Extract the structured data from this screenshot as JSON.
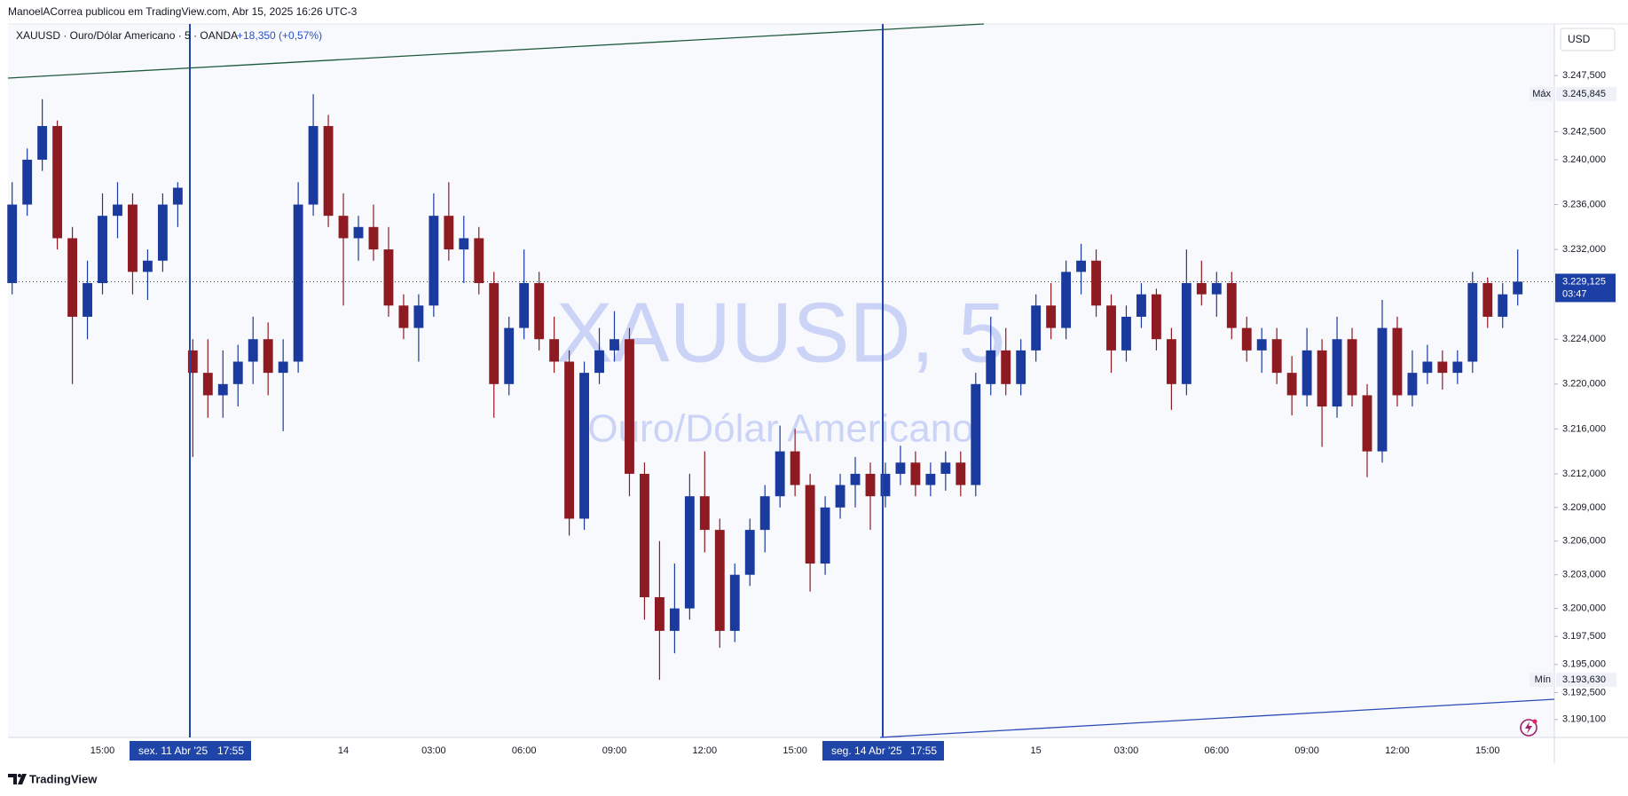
{
  "chart_data": {
    "type": "candlestick",
    "publisher": "ManoelACorrea publicou em TradingView.com, Abr 15, 2025 16:26 UTC-3",
    "symbol": "XAUUSD · Ouro/Dólar Americano · 5 · OANDA",
    "change": "+18,350 (+0,57%)",
    "currency": "USD",
    "watermark": "XAUUSD, 5",
    "watermark_subtitle": "Ouro/Dólar Americano",
    "brand": "TradingView",
    "up_color": "#1a3a9e",
    "down_color": "#8e1a22",
    "grid": false,
    "categories": [
      null,
      null,
      null,
      null,
      null,
      null,
      "15:00",
      null,
      null,
      null,
      null,
      null,
      null,
      null,
      null,
      null,
      null,
      null,
      null,
      null,
      null,
      null,
      "14",
      null,
      null,
      null,
      null,
      null,
      "03:00",
      null,
      null,
      null,
      null,
      null,
      "06:00",
      null,
      null,
      null,
      null,
      null,
      "09:00",
      null,
      null,
      null,
      null,
      null,
      "12:00",
      null,
      null,
      null,
      null,
      null,
      "15:00",
      null,
      null,
      null,
      null,
      null,
      null,
      null,
      null,
      null,
      null,
      null,
      null,
      null,
      null,
      null,
      "15",
      null,
      null,
      null,
      null,
      null,
      "03:00",
      null,
      null,
      null,
      null,
      null,
      "06:00",
      null,
      null,
      null,
      null,
      null,
      "09:00",
      null,
      null,
      null,
      null,
      null,
      "12:00",
      null,
      null,
      null,
      null,
      null,
      "15:00",
      null,
      null
    ],
    "open": [
      3229,
      3236,
      3240,
      3243,
      3233,
      3226,
      3229,
      3235,
      3236,
      3230,
      3231,
      3236,
      3223,
      3221,
      3219,
      3220,
      3222,
      3224,
      3221,
      3222,
      3236,
      3243,
      3235,
      3233,
      3234,
      3232,
      3227,
      3225,
      3227,
      3235,
      3232,
      3233,
      3229,
      3220,
      3225,
      3229,
      3224,
      3222,
      3208,
      3221,
      3223,
      3224,
      3212,
      3201,
      3198,
      3200,
      3210,
      3207,
      3198,
      3203,
      3207,
      3210,
      3214,
      3211,
      3204,
      3209,
      3211,
      3212,
      3210,
      3212,
      3213,
      3211,
      3212,
      3213,
      3211,
      3220,
      3223,
      3220,
      3223,
      3227,
      3225,
      3230,
      3231,
      3227,
      3223,
      3226,
      3228,
      3224,
      3220,
      3229,
      3228,
      3229,
      3225,
      3223,
      3224,
      3221,
      3219,
      3223,
      3218,
      3224,
      3219,
      3214,
      3225,
      3219,
      3221,
      3222,
      3221,
      3222,
      3229,
      3226,
      3228
    ],
    "high": [
      3238,
      3241,
      3245.4,
      3243.5,
      3234,
      3231,
      3237,
      3238,
      3237,
      3232,
      3237,
      3238,
      3224,
      3224,
      3223,
      3223.5,
      3226,
      3225.5,
      3224,
      3238,
      3245.845,
      3244,
      3237,
      3235,
      3236,
      3234,
      3228,
      3228,
      3237,
      3238,
      3235,
      3234,
      3230,
      3226,
      3232,
      3230,
      3226,
      3223,
      3222,
      3225,
      3226.5,
      3225,
      3213,
      3206,
      3204,
      3212,
      3214,
      3208,
      3204,
      3208,
      3211,
      3216.3,
      3216,
      3212,
      3210,
      3212,
      3213.5,
      3213,
      3213,
      3214.5,
      3214,
      3213,
      3214,
      3214,
      3221,
      3226,
      3225,
      3224,
      3228,
      3229,
      3231,
      3232.5,
      3232,
      3228,
      3227,
      3229,
      3228.5,
      3225,
      3232,
      3231,
      3230,
      3230,
      3226,
      3225,
      3225,
      3222.5,
      3225,
      3224,
      3226,
      3225,
      3220,
      3227.5,
      3226,
      3223,
      3223.5,
      3223,
      3223,
      3230,
      3229.5,
      3229,
      3232
    ],
    "low": [
      3228,
      3235,
      3239,
      3232,
      3220,
      3224,
      3228,
      3233,
      3228,
      3227.5,
      3230,
      3234,
      3213.5,
      3217,
      3217,
      3218,
      3220,
      3219,
      3215.8,
      3221,
      3235,
      3234,
      3227,
      3231,
      3231,
      3226,
      3224,
      3222,
      3226,
      3231,
      3229,
      3228,
      3217,
      3219,
      3224,
      3223,
      3221,
      3206.5,
      3207,
      3220,
      3222,
      3210,
      3199,
      3193.63,
      3196,
      3199,
      3205,
      3196.5,
      3197,
      3202,
      3205,
      3209,
      3210,
      3201.5,
      3203,
      3208,
      3209,
      3207,
      3209,
      3211,
      3210,
      3210,
      3210.5,
      3210,
      3210,
      3219,
      3219,
      3219,
      3222,
      3224,
      3224,
      3228,
      3226,
      3221,
      3222,
      3225,
      3223,
      3217.7,
      3219,
      3227,
      3226,
      3224,
      3222,
      3221,
      3220,
      3217.2,
      3218,
      3214.4,
      3217,
      3218,
      3211.7,
      3213,
      3218,
      3218,
      3220,
      3219.5,
      3220,
      3221,
      3225,
      3225,
      3227
    ],
    "close": [
      3236,
      3240,
      3243,
      3233,
      3226,
      3229,
      3235,
      3236,
      3230,
      3231,
      3236,
      3237.5,
      3221,
      3219,
      3220,
      3222,
      3224,
      3221,
      3222,
      3236,
      3243,
      3235,
      3233,
      3234,
      3232,
      3227,
      3225,
      3227,
      3235,
      3232,
      3233,
      3229,
      3220,
      3225,
      3229,
      3224,
      3222,
      3208,
      3221,
      3223,
      3224,
      3212,
      3201,
      3198,
      3200,
      3210,
      3207,
      3198,
      3203,
      3207,
      3210,
      3214,
      3211,
      3204,
      3209,
      3211,
      3212,
      3210,
      3212,
      3213,
      3211,
      3212,
      3213,
      3211,
      3220,
      3223,
      3220,
      3223,
      3227,
      3225,
      3230,
      3231,
      3227,
      3223,
      3226,
      3228,
      3224,
      3220,
      3229,
      3228,
      3229,
      3225,
      3223,
      3224,
      3221,
      3219,
      3223,
      3218,
      3224,
      3219,
      3214,
      3225,
      3219,
      3221,
      3222,
      3221,
      3222,
      3229,
      3226,
      3228,
      3229.125
    ],
    "ylim": [
      3188.5,
      3252.1
    ],
    "yticks": [
      {
        "value": 3247.5,
        "label": "3.247,500"
      },
      {
        "value": 3242.5,
        "label": "3.242,500"
      },
      {
        "value": 3240,
        "label": "3.240,000"
      },
      {
        "value": 3236,
        "label": "3.236,000"
      },
      {
        "value": 3232,
        "label": "3.232,000"
      },
      {
        "value": 3224,
        "label": "3.224,000"
      },
      {
        "value": 3220,
        "label": "3.220,000"
      },
      {
        "value": 3216,
        "label": "3.216,000"
      },
      {
        "value": 3212,
        "label": "3.212,000"
      },
      {
        "value": 3209,
        "label": "3.209,000"
      },
      {
        "value": 3206,
        "label": "3.206,000"
      },
      {
        "value": 3203,
        "label": "3.203,000"
      },
      {
        "value": 3200,
        "label": "3.200,000"
      },
      {
        "value": 3197.5,
        "label": "3.197,500"
      },
      {
        "value": 3195,
        "label": "3.195,000"
      },
      {
        "value": 3192.5,
        "label": "3.192,500"
      },
      {
        "value": 3190.1,
        "label": "3.190,100"
      }
    ],
    "price_markers": [
      {
        "name": "Máx",
        "value": 3245.845,
        "label": "3.245,845"
      },
      {
        "name": "Mín",
        "value": 3193.63,
        "label": "3.193,630"
      }
    ],
    "last_price": {
      "value": 3229.125,
      "label": "3.229,125",
      "countdown": "03:47"
    },
    "time_markers": [
      {
        "date": "sex. 11 Abr '25",
        "time": "17:55"
      },
      {
        "date": "seg. 14 Abr '25",
        "time": "17:55"
      }
    ]
  }
}
